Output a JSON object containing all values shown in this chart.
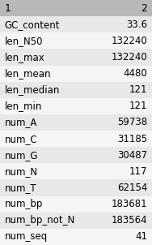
{
  "col_headers": [
    "1",
    "2"
  ],
  "rows": [
    [
      "GC_content",
      "33.6"
    ],
    [
      "len_N50",
      "132240"
    ],
    [
      "len_max",
      "132240"
    ],
    [
      "len_mean",
      "4480"
    ],
    [
      "len_median",
      "121"
    ],
    [
      "len_min",
      "121"
    ],
    [
      "num_A",
      "59738"
    ],
    [
      "num_C",
      "31185"
    ],
    [
      "num_G",
      "30487"
    ],
    [
      "num_N",
      "117"
    ],
    [
      "num_T",
      "62154"
    ],
    [
      "num_bp",
      "183681"
    ],
    [
      "num_bp_not_N",
      "183564"
    ],
    [
      "num_seq",
      "41"
    ]
  ],
  "header_bg": "#b8b8b8",
  "row_bg_odd": "#e8e8e8",
  "row_bg_even": "#f5f5f5",
  "header_text_color": "#000000",
  "row_text_color": "#000000",
  "font_size": 8.5,
  "header_font_size": 9,
  "col_split": 0.6
}
